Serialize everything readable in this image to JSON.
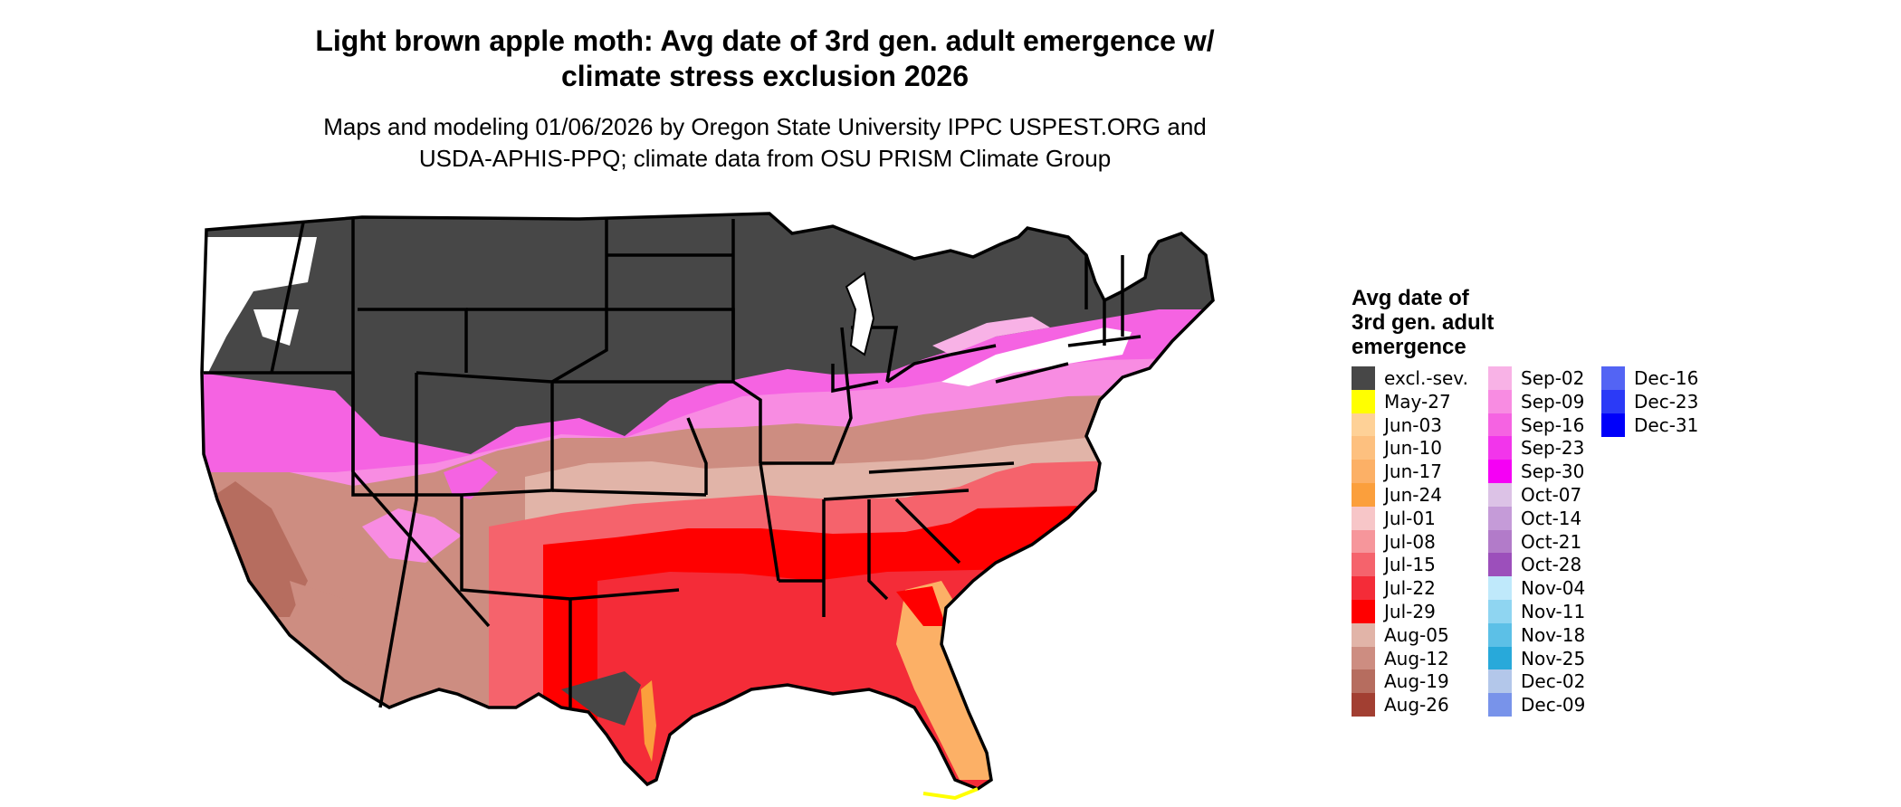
{
  "title_line1": "Light brown apple moth: Avg date of 3rd gen. adult emergence w/",
  "title_line2": "climate stress exclusion 2026",
  "subtitle_line1": "Maps and modeling 01/06/2026 by Oregon State University IPPC USPEST.ORG and",
  "subtitle_line2": "USDA-APHIS-PPQ; climate data from OSU PRISM Climate Group",
  "legend": {
    "title_line1": "Avg date of",
    "title_line2": "3rd gen. adult",
    "title_line3": "emergence",
    "items": [
      {
        "label": "excl.-sev.",
        "color": "#474747"
      },
      {
        "label": "May-27",
        "color": "#ffff00"
      },
      {
        "label": "Jun-03",
        "color": "#fed197"
      },
      {
        "label": "Jun-10",
        "color": "#fdc07f"
      },
      {
        "label": "Jun-17",
        "color": "#fcb066"
      },
      {
        "label": "Jun-24",
        "color": "#fb9f3c"
      },
      {
        "label": "Jul-01",
        "color": "#f7c6c8"
      },
      {
        "label": "Jul-08",
        "color": "#f6969b"
      },
      {
        "label": "Jul-15",
        "color": "#f5636c"
      },
      {
        "label": "Jul-22",
        "color": "#f42c38"
      },
      {
        "label": "Jul-29",
        "color": "#ff0000"
      },
      {
        "label": "Aug-05",
        "color": "#e1b4a8"
      },
      {
        "label": "Aug-12",
        "color": "#cd8d81"
      },
      {
        "label": "Aug-19",
        "color": "#b66d5f"
      },
      {
        "label": "Aug-26",
        "color": "#a23f32"
      },
      {
        "label": "Sep-02",
        "color": "#f8b2e6"
      },
      {
        "label": "Sep-09",
        "color": "#f88ce2"
      },
      {
        "label": "Sep-16",
        "color": "#f563e2"
      },
      {
        "label": "Sep-23",
        "color": "#f235eb"
      },
      {
        "label": "Sep-30",
        "color": "#f500f5"
      },
      {
        "label": "Oct-07",
        "color": "#dcc2e6"
      },
      {
        "label": "Oct-14",
        "color": "#c59bd8"
      },
      {
        "label": "Oct-21",
        "color": "#b27bc9"
      },
      {
        "label": "Oct-28",
        "color": "#9c4fbb"
      },
      {
        "label": "Nov-04",
        "color": "#bfe9fb"
      },
      {
        "label": "Nov-11",
        "color": "#8fd5f1"
      },
      {
        "label": "Nov-18",
        "color": "#5cc0e7"
      },
      {
        "label": "Nov-25",
        "color": "#28a9da"
      },
      {
        "label": "Dec-02",
        "color": "#b3c7ea"
      },
      {
        "label": "Dec-09",
        "color": "#7893ea"
      },
      {
        "label": "Dec-16",
        "color": "#5364f4"
      },
      {
        "label": "Dec-23",
        "color": "#2b3af7"
      },
      {
        "label": "Dec-31",
        "color": "#0000fa"
      }
    ]
  }
}
